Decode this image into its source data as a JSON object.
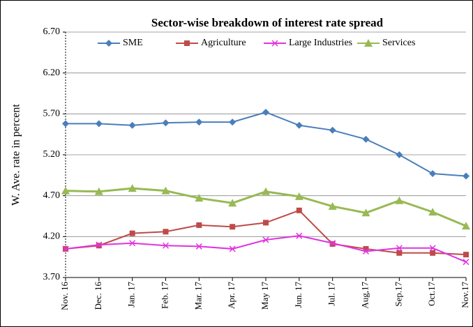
{
  "chart_data": {
    "type": "line",
    "title": "Sector-wise breakdown of interest rate spread",
    "y_label": "W. Ave. rate in percent",
    "categories": [
      "Nov. 16",
      "Dec. 16",
      "Jan. 17",
      "Feb. 17",
      "Mar. 17",
      "Apr. 17",
      "May 17",
      "Jun. 17",
      "Jul. 17",
      "Aug,17",
      "Sep.17",
      "Oct.17",
      "Nov.17"
    ],
    "series": [
      {
        "name": "SME",
        "color": "#4a7ebb",
        "marker": "diamond",
        "values": [
          5.58,
          5.58,
          5.56,
          5.59,
          5.6,
          5.6,
          5.72,
          5.56,
          5.5,
          5.39,
          5.2,
          4.97,
          4.94
        ]
      },
      {
        "name": "Agriculture",
        "color": "#be4b48",
        "marker": "square",
        "values": [
          4.05,
          4.09,
          4.24,
          4.26,
          4.34,
          4.32,
          4.37,
          4.52,
          4.11,
          4.05,
          4.0,
          4.0,
          3.98
        ]
      },
      {
        "name": "Large Industries",
        "color": "#e033e0",
        "marker": "x",
        "values": [
          4.05,
          4.1,
          4.12,
          4.09,
          4.08,
          4.05,
          4.16,
          4.21,
          4.12,
          4.02,
          4.06,
          4.06,
          3.89
        ]
      },
      {
        "name": "Services",
        "color": "#98b954",
        "marker": "triangle",
        "values": [
          4.76,
          4.75,
          4.79,
          4.76,
          4.67,
          4.61,
          4.75,
          4.69,
          4.57,
          4.49,
          4.64,
          4.5,
          4.33
        ]
      }
    ],
    "ylim": [
      3.7,
      6.7
    ],
    "yticks": [
      {
        "value": 3.7,
        "label": "3.70"
      },
      {
        "value": 4.2,
        "label": "4.20"
      },
      {
        "value": 4.7,
        "label": "4.70"
      },
      {
        "value": 5.2,
        "label": "5.20"
      },
      {
        "value": 5.7,
        "label": "5.70"
      },
      {
        "value": 6.2,
        "label": "6.20"
      },
      {
        "value": 6.7,
        "label": "6.70"
      }
    ],
    "grid": true,
    "legend": "top"
  }
}
